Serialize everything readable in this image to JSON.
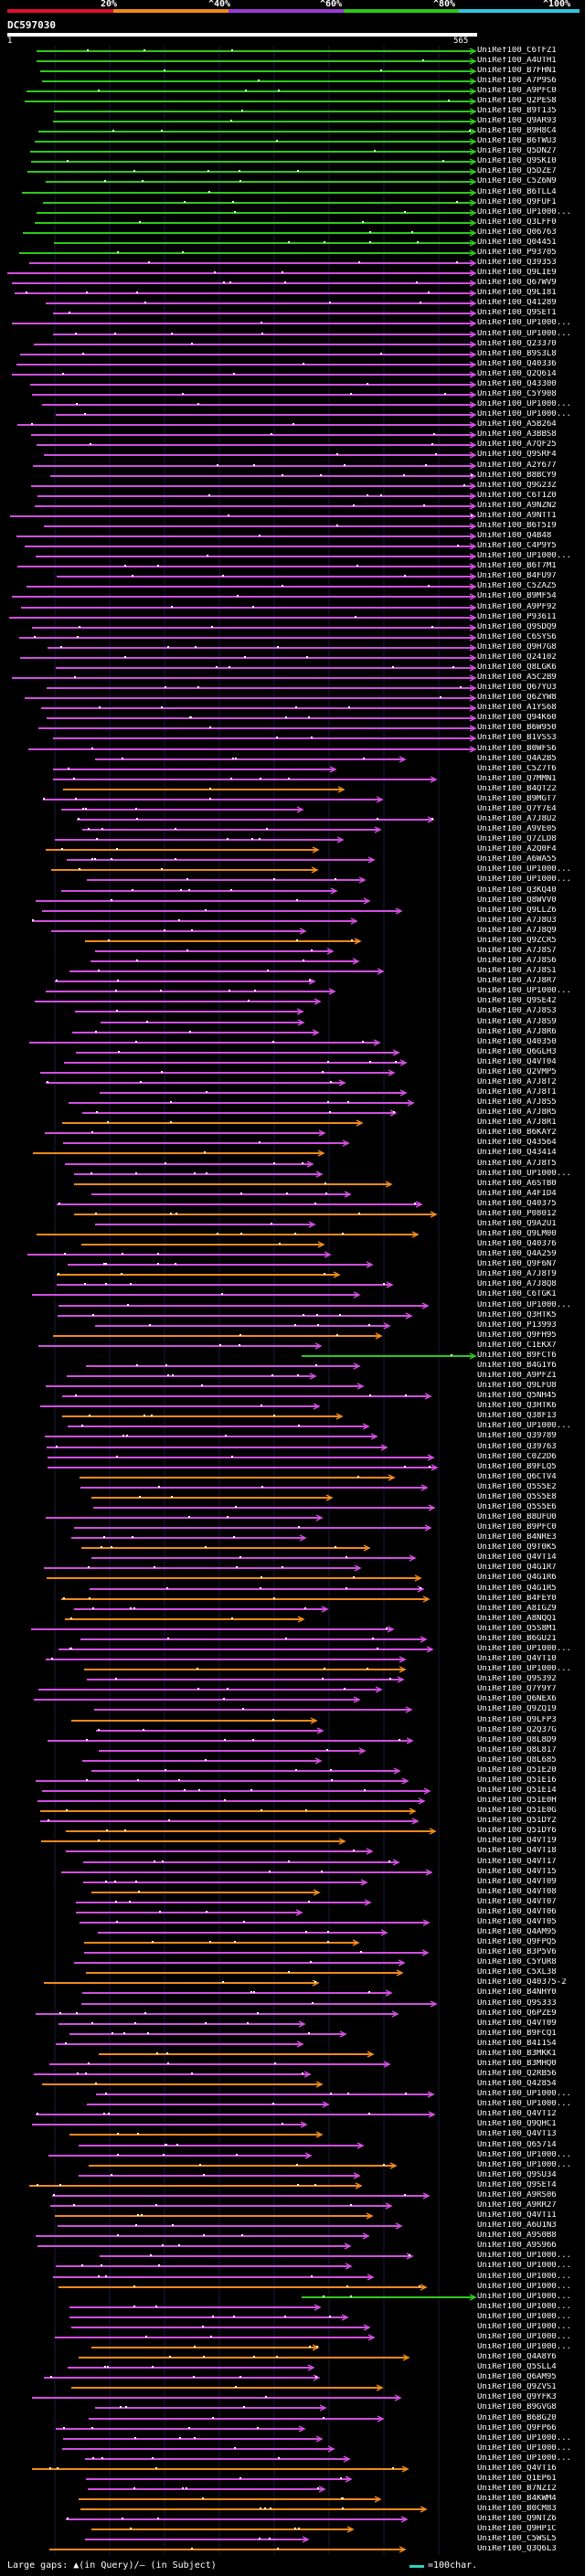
{
  "scale": {
    "labels": [
      "20%",
      "^40%",
      "^60%",
      "^80%",
      "^100%"
    ],
    "colors": [
      "#e0102a",
      "#f08a1c",
      "#9a3bd6",
      "#2ec81c",
      "#30c6e0"
    ]
  },
  "query_id": "DC597030",
  "ruler_start": "1",
  "ruler_end": "565",
  "hit_labels": [
    "UniRef100_C6TFZ1",
    "UniRef100_A4UTH1",
    "UniRef100_B7FHN1",
    "UniRef100_A7P9S6",
    "UniRef100_A9PFC0",
    "UniRef100_Q2PES8",
    "UniRef100_B9T135",
    "UniRef100_Q9AR93",
    "UniRef100_B9H8C4",
    "UniRef100_B6TWU3",
    "UniRef100_Q5DN27",
    "UniRef100_Q9SKI0",
    "UniRef100_Q5DZE7",
    "UniRef100_C5Z6N9",
    "UniRef100_B6TLL4",
    "UniRef100_Q9FUF1",
    "UniRef100_UP1000...",
    "UniRef100_Q3LFF0",
    "UniRef100_Q06763",
    "UniRef100_Q04451",
    "UniRef100_P93705",
    "UniRef100_Q39353",
    "UniRef100_Q9LIE9",
    "UniRef100_Q67WV9",
    "UniRef100_Q9LI81",
    "UniRef100_Q41289",
    "UniRef100_Q9SET1",
    "UniRef100_UP1000...",
    "UniRef100_UP1000...",
    "UniRef100_Q23370",
    "UniRef100_B9S3L8",
    "UniRef100_Q40336",
    "UniRef100_Q2Q614",
    "UniRef100_Q43300",
    "UniRef100_C5Y908",
    "UniRef100_UP1000...",
    "UniRef100_UP1000...",
    "UniRef100_A5B264",
    "UniRef100_A3BBS8",
    "UniRef100_A7QF25",
    "UniRef100_Q9SRF4",
    "UniRef100_A2Y677",
    "UniRef100_B8BCY9",
    "UniRef100_Q9G23Z",
    "UniRef100_C6T1Z0",
    "UniRef100_A9NZN2",
    "UniRef100_A9NTT1",
    "UniRef100_B6T5I9",
    "UniRef100_Q4B48",
    "UniRef100_C4P9Y5",
    "UniRef100_UP1000...",
    "UniRef100_B6T7M1",
    "UniRef100_B4FU97",
    "UniRef100_C5ZAZ5",
    "UniRef100_B9MF54",
    "UniRef100_A9PF92",
    "UniRef100_P93611",
    "UniRef100_Q9SDQ9",
    "UniRef100_C6SYS6",
    "UniRef100_Q9H7G8",
    "UniRef100_Q24102",
    "UniRef100_Q8LGK6",
    "UniRef100_A5C2B9",
    "UniRef100_Q67YU3",
    "UniRef100_Q6ZYW8",
    "UniRef100_A1YS68",
    "UniRef100_Q94K60",
    "UniRef100_B6W950",
    "UniRef100_B1VSS3",
    "UniRef100_B0WFS6",
    "UniRef100_Q4A2B5",
    "UniRef100_C5Z7T6",
    "UniRef100_Q7MMN1",
    "UniRef100_B4QT22",
    "UniRef100_B9MGT7",
    "UniRef100_Q7Y7E4",
    "UniRef100_A7J8U2",
    "UniRef100_A9VE05",
    "UniRef100_Q7ZLD8",
    "UniRef100_A2Q0F4",
    "UniRef100_A6WA55",
    "UniRef100_UP1000...",
    "UniRef100_UP1000...",
    "UniRef100_Q3KQ40",
    "UniRef100_Q8WVV0",
    "UniRef100_Q9LLZ6",
    "UniRef100_A7J8U3",
    "UniRef100_A7J8Q9",
    "UniRef100_Q9ZCR5",
    "UniRef100_A7J8S7",
    "UniRef100_A7J8S6",
    "UniRef100_A7J8S1",
    "UniRef100_A7J8R7",
    "UniRef100_UP1000...",
    "UniRef100_Q9SE42",
    "UniRef100_A7J8S3",
    "UniRef100_A7J8S9",
    "UniRef100_A7J8R6",
    "UniRef100_Q40350",
    "UniRef100_Q6GLH3",
    "UniRef100_Q4VT04",
    "UniRef100_Q2VMP5",
    "UniRef100_A7J8T2",
    "UniRef100_A7J8T1",
    "UniRef100_A7J8S5",
    "UniRef100_A7J8R5",
    "UniRef100_A7J8R1",
    "UniRef100_B6KAY2",
    "UniRef100_Q43564",
    "UniRef100_Q43414",
    "UniRef100_A7J8T5",
    "UniRef100_UP1000...",
    "UniRef100_A6STB0",
    "UniRef100_A4FID4",
    "UniRef100_Q40375",
    "UniRef100_P08012",
    "UniRef100_Q9A2U1",
    "UniRef100_Q9LM00",
    "UniRef100_Q40376",
    "UniRef100_Q4A259",
    "UniRef100_Q9F6N7",
    "UniRef100_A7J8T9",
    "UniRef100_A7J8Q8",
    "UniRef100_C6TGK1",
    "UniRef100_UP1000...",
    "UniRef100_Q3HTK5",
    "UniRef100_P13993",
    "UniRef100_Q9FH95",
    "UniRef100_C1EKX7",
    "UniRef100_B9FCT6",
    "UniRef100_B4G1Y6",
    "UniRef100_A9PFZ1",
    "UniRef100_Q9LFU8",
    "UniRef100_Q5NH45",
    "UniRef100_Q3HTK6",
    "UniRef100_Q38F13",
    "UniRef100_UP1000...",
    "UniRef100_Q39789",
    "UniRef100_Q39763",
    "UniRef100_C0Z2D6",
    "UniRef100_B9FLQ5",
    "UniRef100_Q6CTV4",
    "UniRef100_Q5S5E2",
    "UniRef100_Q5S5E8",
    "UniRef100_Q5S5E6",
    "UniRef100_B8UFU0",
    "UniRef100_B9PFC0",
    "UniRef100_B4NRE3",
    "UniRef100_Q9T0K5",
    "UniRef100_Q4VT14",
    "UniRef100_Q4G1R7",
    "UniRef100_Q4G1R6",
    "UniRef100_Q4G1R5",
    "UniRef100_B4FEY0",
    "UniRef100_A8IGZ9",
    "UniRef100_A8NQQ1",
    "UniRef100_Q5S8M1",
    "UniRef100_B6GU21",
    "UniRef100_UP1000...",
    "UniRef100_Q4VT10",
    "UniRef100_UP1000...",
    "UniRef100_Q9S392",
    "UniRef100_Q7Y9Y7",
    "UniRef100_Q6NEX6",
    "UniRef100_Q9ZQ19",
    "UniRef100_Q9LFP3",
    "UniRef100_Q2Q37G",
    "UniRef100_Q8L8D9",
    "UniRef100_Q8L817",
    "UniRef100_Q8L685",
    "UniRef100_Q51E20",
    "UniRef100_Q51E16",
    "UniRef100_Q51E14",
    "UniRef100_Q51E0H",
    "UniRef100_Q51E0G",
    "UniRef100_Q51DY2",
    "UniRef100_Q51DY6",
    "UniRef100_Q4VT19",
    "UniRef100_Q4VT18",
    "UniRef100_Q4VT17",
    "UniRef100_Q4VT15",
    "UniRef100_Q4VT09",
    "UniRef100_Q4VT08",
    "UniRef100_Q4VT07",
    "UniRef100_Q4VT06",
    "UniRef100_Q4VT05",
    "UniRef100_Q4AM95",
    "UniRef100_Q9FPQ5",
    "UniRef100_B3P5V6",
    "UniRef100_C5YUR8",
    "UniRef100_C5XL38",
    "UniRef100_Q40375-2",
    "UniRef100_B4NHY0",
    "UniRef100_Q9S333",
    "UniRef100_Q6PZE9",
    "UniRef100_Q4VT09",
    "UniRef100_B9FCQ1",
    "UniRef100_B4I1S4",
    "UniRef100_B3MKK1",
    "UniRef100_B3MHQ0",
    "UniRef100_Q2RB56",
    "UniRef100_Q42854",
    "UniRef100_UP1000...",
    "UniRef100_UP1000...",
    "UniRef100_Q4VT12",
    "UniRef100_Q9QHC1",
    "UniRef100_Q4VT13",
    "UniRef100_Q65714",
    "UniRef100_UP1000...",
    "UniRef100_UP1000...",
    "UniRef100_Q9SU34",
    "UniRef100_Q9SET4",
    "UniRef100_A9RS06",
    "UniRef100_A9RR27",
    "UniRef100_Q4VT11",
    "UniRef100_A6U1N3",
    "UniRef100_A9S0B8",
    "UniRef100_A9S966",
    "UniRef100_UP1000...",
    "UniRef100_UP1000...",
    "UniRef100_UP1000...",
    "UniRef100_UP1000...",
    "UniRef100_UP1000...",
    "UniRef100_UP1000...",
    "UniRef100_UP1000...",
    "UniRef100_UP1000...",
    "UniRef100_UP1000...",
    "UniRef100_UP1000...",
    "UniRef100_Q4A8Y6",
    "UniRef100_Q5SLL4",
    "UniRef100_Q6AM95",
    "UniRef100_Q9ZVS1",
    "UniRef100_Q9YFK3",
    "UniRef100_B9GVG8",
    "UniRef100_B6BG20",
    "UniRef100_Q9FP66",
    "UniRef100_UP1000...",
    "UniRef100_UP1000...",
    "UniRef100_UP1000...",
    "UniRef100_Q4VT16",
    "UniRef100_Q1EP61",
    "UniRef100_B7NZI2",
    "UniRef100_B4KWM4",
    "UniRef100_B0CM83",
    "UniRef100_Q9NTZ6",
    "UniRef100_Q9HP1C",
    "UniRef100_C5WSL5",
    "UniRef100_Q3Q6L3"
  ],
  "legend": {
    "gaps_label": "Large gaps: ▲(in Query)/— (in Subject)",
    "unit_label": "=100char."
  }
}
